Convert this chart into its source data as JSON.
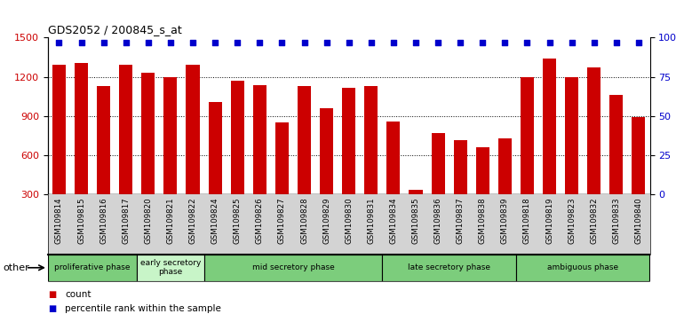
{
  "title": "GDS2052 / 200845_s_at",
  "samples": [
    "GSM109814",
    "GSM109815",
    "GSM109816",
    "GSM109817",
    "GSM109820",
    "GSM109821",
    "GSM109822",
    "GSM109824",
    "GSM109825",
    "GSM109826",
    "GSM109827",
    "GSM109828",
    "GSM109829",
    "GSM109830",
    "GSM109831",
    "GSM109834",
    "GSM109835",
    "GSM109836",
    "GSM109837",
    "GSM109838",
    "GSM109839",
    "GSM109818",
    "GSM109819",
    "GSM109823",
    "GSM109832",
    "GSM109833",
    "GSM109840"
  ],
  "counts": [
    1290,
    1305,
    1130,
    1290,
    1230,
    1200,
    1290,
    1010,
    1170,
    1140,
    850,
    1130,
    960,
    1120,
    1130,
    860,
    340,
    770,
    720,
    660,
    730,
    1200,
    1340,
    1200,
    1270,
    1060,
    890
  ],
  "phases": [
    {
      "label": "proliferative phase",
      "start": 0,
      "end": 4,
      "color": "#7CCD7C"
    },
    {
      "label": "early secretory\nphase",
      "start": 4,
      "end": 7,
      "color": "#c8f5c8"
    },
    {
      "label": "mid secretory phase",
      "start": 7,
      "end": 15,
      "color": "#7CCD7C"
    },
    {
      "label": "late secretory phase",
      "start": 15,
      "end": 21,
      "color": "#7CCD7C"
    },
    {
      "label": "ambiguous phase",
      "start": 21,
      "end": 27,
      "color": "#7CCD7C"
    }
  ],
  "bar_color": "#CC0000",
  "dot_color": "#0000CC",
  "ylim_left": [
    300,
    1500
  ],
  "ylim_right": [
    0,
    100
  ],
  "yticks_left": [
    300,
    600,
    900,
    1200,
    1500
  ],
  "yticks_right": [
    0,
    25,
    50,
    75,
    100
  ],
  "grid_dotted_values": [
    600,
    900,
    1200
  ],
  "plot_bg": "#ffffff",
  "xticklabel_bg": "#d3d3d3"
}
